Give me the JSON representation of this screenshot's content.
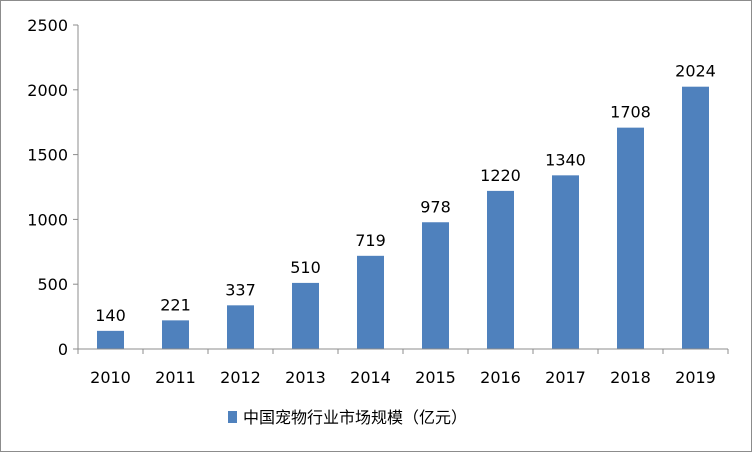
{
  "chart_data": {
    "type": "bar",
    "categories": [
      "2010",
      "2011",
      "2012",
      "2013",
      "2014",
      "2015",
      "2016",
      "2017",
      "2018",
      "2019"
    ],
    "series": [
      {
        "name": "中国宠物行业市场规模（亿元）",
        "values": [
          140,
          221,
          337,
          510,
          719,
          978,
          1220,
          1340,
          1708,
          2024
        ],
        "color": "#4f81bd"
      }
    ],
    "yticks": [
      "0",
      "500",
      "1000",
      "1500",
      "2000",
      "2500"
    ],
    "ylim": [
      0,
      2500
    ],
    "grid": false,
    "legend_position": "bottom"
  }
}
